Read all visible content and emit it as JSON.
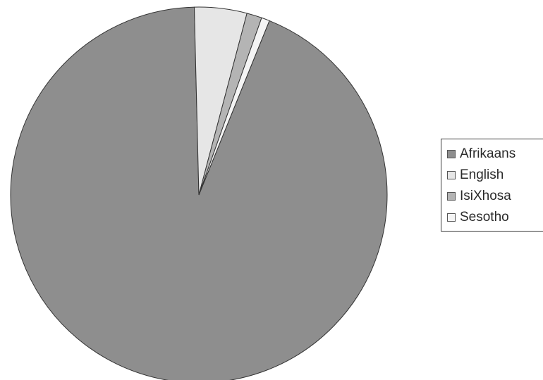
{
  "chart_data": {
    "type": "pie",
    "categories": [
      "Afrikaans",
      "English",
      "IsiXhosa",
      "Sesotho"
    ],
    "values": [
      93.5,
      4.5,
      1.3,
      0.7
    ],
    "colors": [
      "#8e8e8e",
      "#e6e6e6",
      "#b4b4b4",
      "#f4f4f4"
    ],
    "legend_position": "right"
  }
}
